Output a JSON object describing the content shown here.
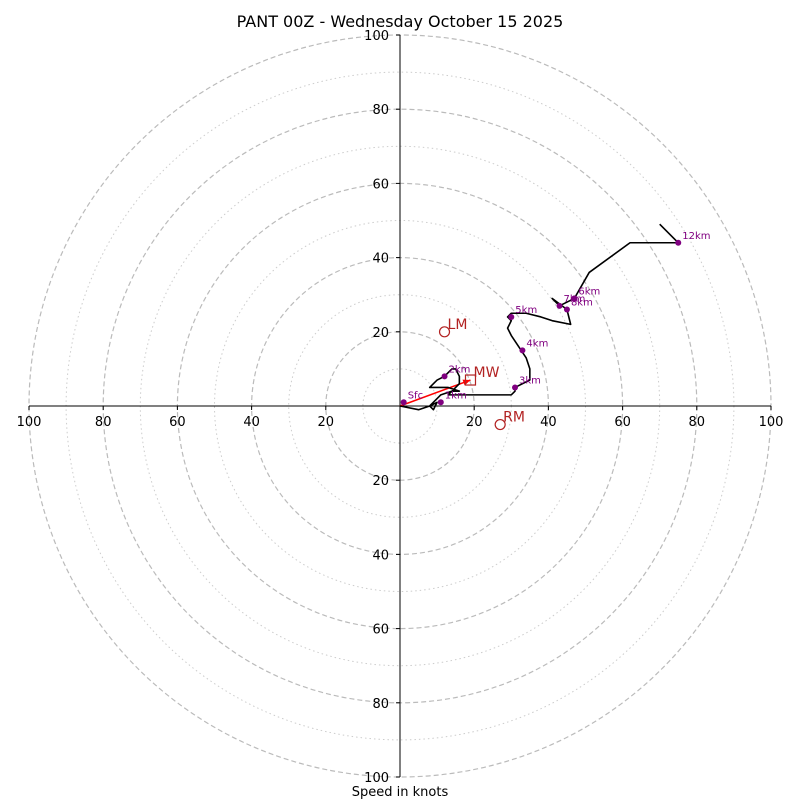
{
  "chart_data": {
    "type": "hodograph",
    "title": "PANT 00Z - Wednesday October 15 2025",
    "xlabel": "Speed in knots",
    "units": "knots",
    "rmax": 100,
    "ring_major": [
      20,
      40,
      60,
      80,
      100
    ],
    "ring_minor": [
      10,
      30,
      50,
      70,
      90
    ],
    "tick_labels": [
      "20",
      "40",
      "60",
      "80",
      "100"
    ],
    "trace": [
      [
        0,
        0
      ],
      [
        5,
        -1
      ],
      [
        8,
        0
      ],
      [
        10,
        1
      ],
      [
        9,
        -1
      ],
      [
        8,
        0
      ],
      [
        10,
        2
      ],
      [
        11,
        3
      ],
      [
        14,
        4
      ],
      [
        16,
        4
      ],
      [
        13,
        5
      ],
      [
        10,
        5
      ],
      [
        8,
        5
      ],
      [
        10,
        7
      ],
      [
        12,
        8
      ],
      [
        13,
        9
      ],
      [
        14,
        10
      ],
      [
        15,
        10
      ],
      [
        16,
        8
      ],
      [
        16,
        6
      ],
      [
        15,
        5
      ],
      [
        14,
        4
      ],
      [
        13,
        3
      ],
      [
        14,
        3
      ],
      [
        16,
        3
      ],
      [
        18,
        3
      ],
      [
        22,
        3
      ],
      [
        25,
        3
      ],
      [
        27,
        3
      ],
      [
        28,
        3
      ],
      [
        30,
        3
      ],
      [
        31,
        4
      ],
      [
        31,
        5
      ],
      [
        35,
        7
      ],
      [
        35,
        10
      ],
      [
        34,
        13
      ],
      [
        32,
        16
      ],
      [
        30,
        19
      ],
      [
        29,
        21
      ],
      [
        30,
        23
      ],
      [
        29,
        24
      ],
      [
        30,
        25
      ],
      [
        34,
        25
      ],
      [
        38,
        24
      ],
      [
        41,
        23
      ],
      [
        46,
        22
      ],
      [
        45,
        26
      ],
      [
        41,
        29
      ],
      [
        43,
        27
      ],
      [
        47,
        29
      ],
      [
        51,
        36
      ],
      [
        62,
        44
      ],
      [
        75,
        44
      ],
      [
        70,
        49
      ]
    ],
    "height_markers": [
      {
        "label": "Sfc",
        "x": 1,
        "y": 1
      },
      {
        "label": "1km",
        "x": 11,
        "y": 1
      },
      {
        "label": "2km",
        "x": 12,
        "y": 8
      },
      {
        "label": "3km",
        "x": 31,
        "y": 5
      },
      {
        "label": "4km",
        "x": 33,
        "y": 15
      },
      {
        "label": "5km",
        "x": 30,
        "y": 24
      },
      {
        "label": "6km",
        "x": 47,
        "y": 29
      },
      {
        "label": "7km",
        "x": 43,
        "y": 27
      },
      {
        "label": "8km",
        "x": 45,
        "y": 26
      },
      {
        "label": "12km",
        "x": 75,
        "y": 44
      }
    ],
    "storm_motion": [
      {
        "label": "LM",
        "x": 12,
        "y": 20,
        "marker": "circle"
      },
      {
        "label": "MW",
        "x": 19,
        "y": 7,
        "marker": "square"
      },
      {
        "label": "RM",
        "x": 27,
        "y": -5,
        "marker": "circle"
      }
    ],
    "shear_vector": {
      "from": [
        0,
        0
      ],
      "to": [
        19,
        7
      ]
    }
  },
  "colors": {
    "trace": "#000000",
    "marker": "#800080",
    "storm": "#b22222",
    "shear": "#ff0000",
    "major_ring": "#bbbbbb",
    "minor_ring": "#cccccc",
    "axis": "#000000"
  }
}
